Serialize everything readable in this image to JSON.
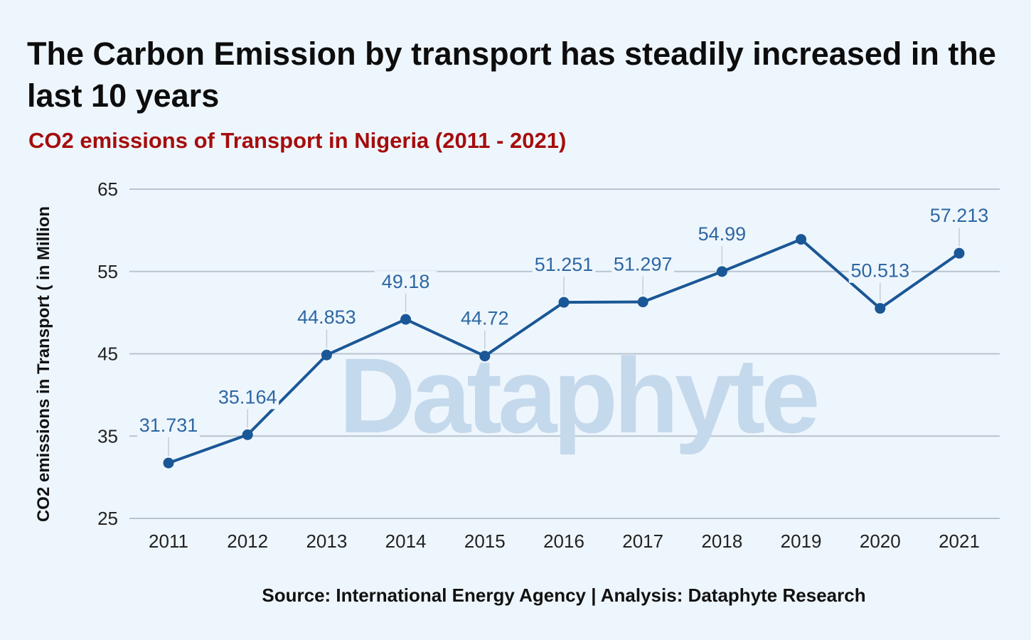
{
  "title": "The Carbon Emission by transport has steadily increased in the last 10 years",
  "subtitle": "CO2 emissions of Transport in Nigeria (2011 - 2021)",
  "source": "Source: International Energy Agency | Analysis: Dataphyte Research",
  "watermark": "Dataphyte",
  "colors": {
    "line": "#1a5796",
    "label": "#2e67a3",
    "grid": "#b9c3cf",
    "subtitle": "#a50d0d",
    "watermark": "#c5d9ec"
  },
  "chart_data": {
    "type": "line",
    "ylabel": "CO2 emissions in Transport ( in Million",
    "xlabel": "",
    "ylim": [
      25,
      65
    ],
    "yticks": [
      25,
      35,
      45,
      55,
      65
    ],
    "grid": true,
    "categories": [
      "2011",
      "2012",
      "2013",
      "2014",
      "2015",
      "2016",
      "2017",
      "2018",
      "2019",
      "2020",
      "2021"
    ],
    "series": [
      {
        "values": [
          31.731,
          35.164,
          44.853,
          49.18,
          44.72,
          51.251,
          51.297,
          54.99,
          58.9,
          50.513,
          57.213
        ],
        "labels": [
          "31.731",
          "35.164",
          "44.853",
          "49.18",
          "44.72",
          "51.251",
          "51.297",
          "54.99",
          "",
          "50.513",
          "57.213"
        ]
      }
    ]
  }
}
